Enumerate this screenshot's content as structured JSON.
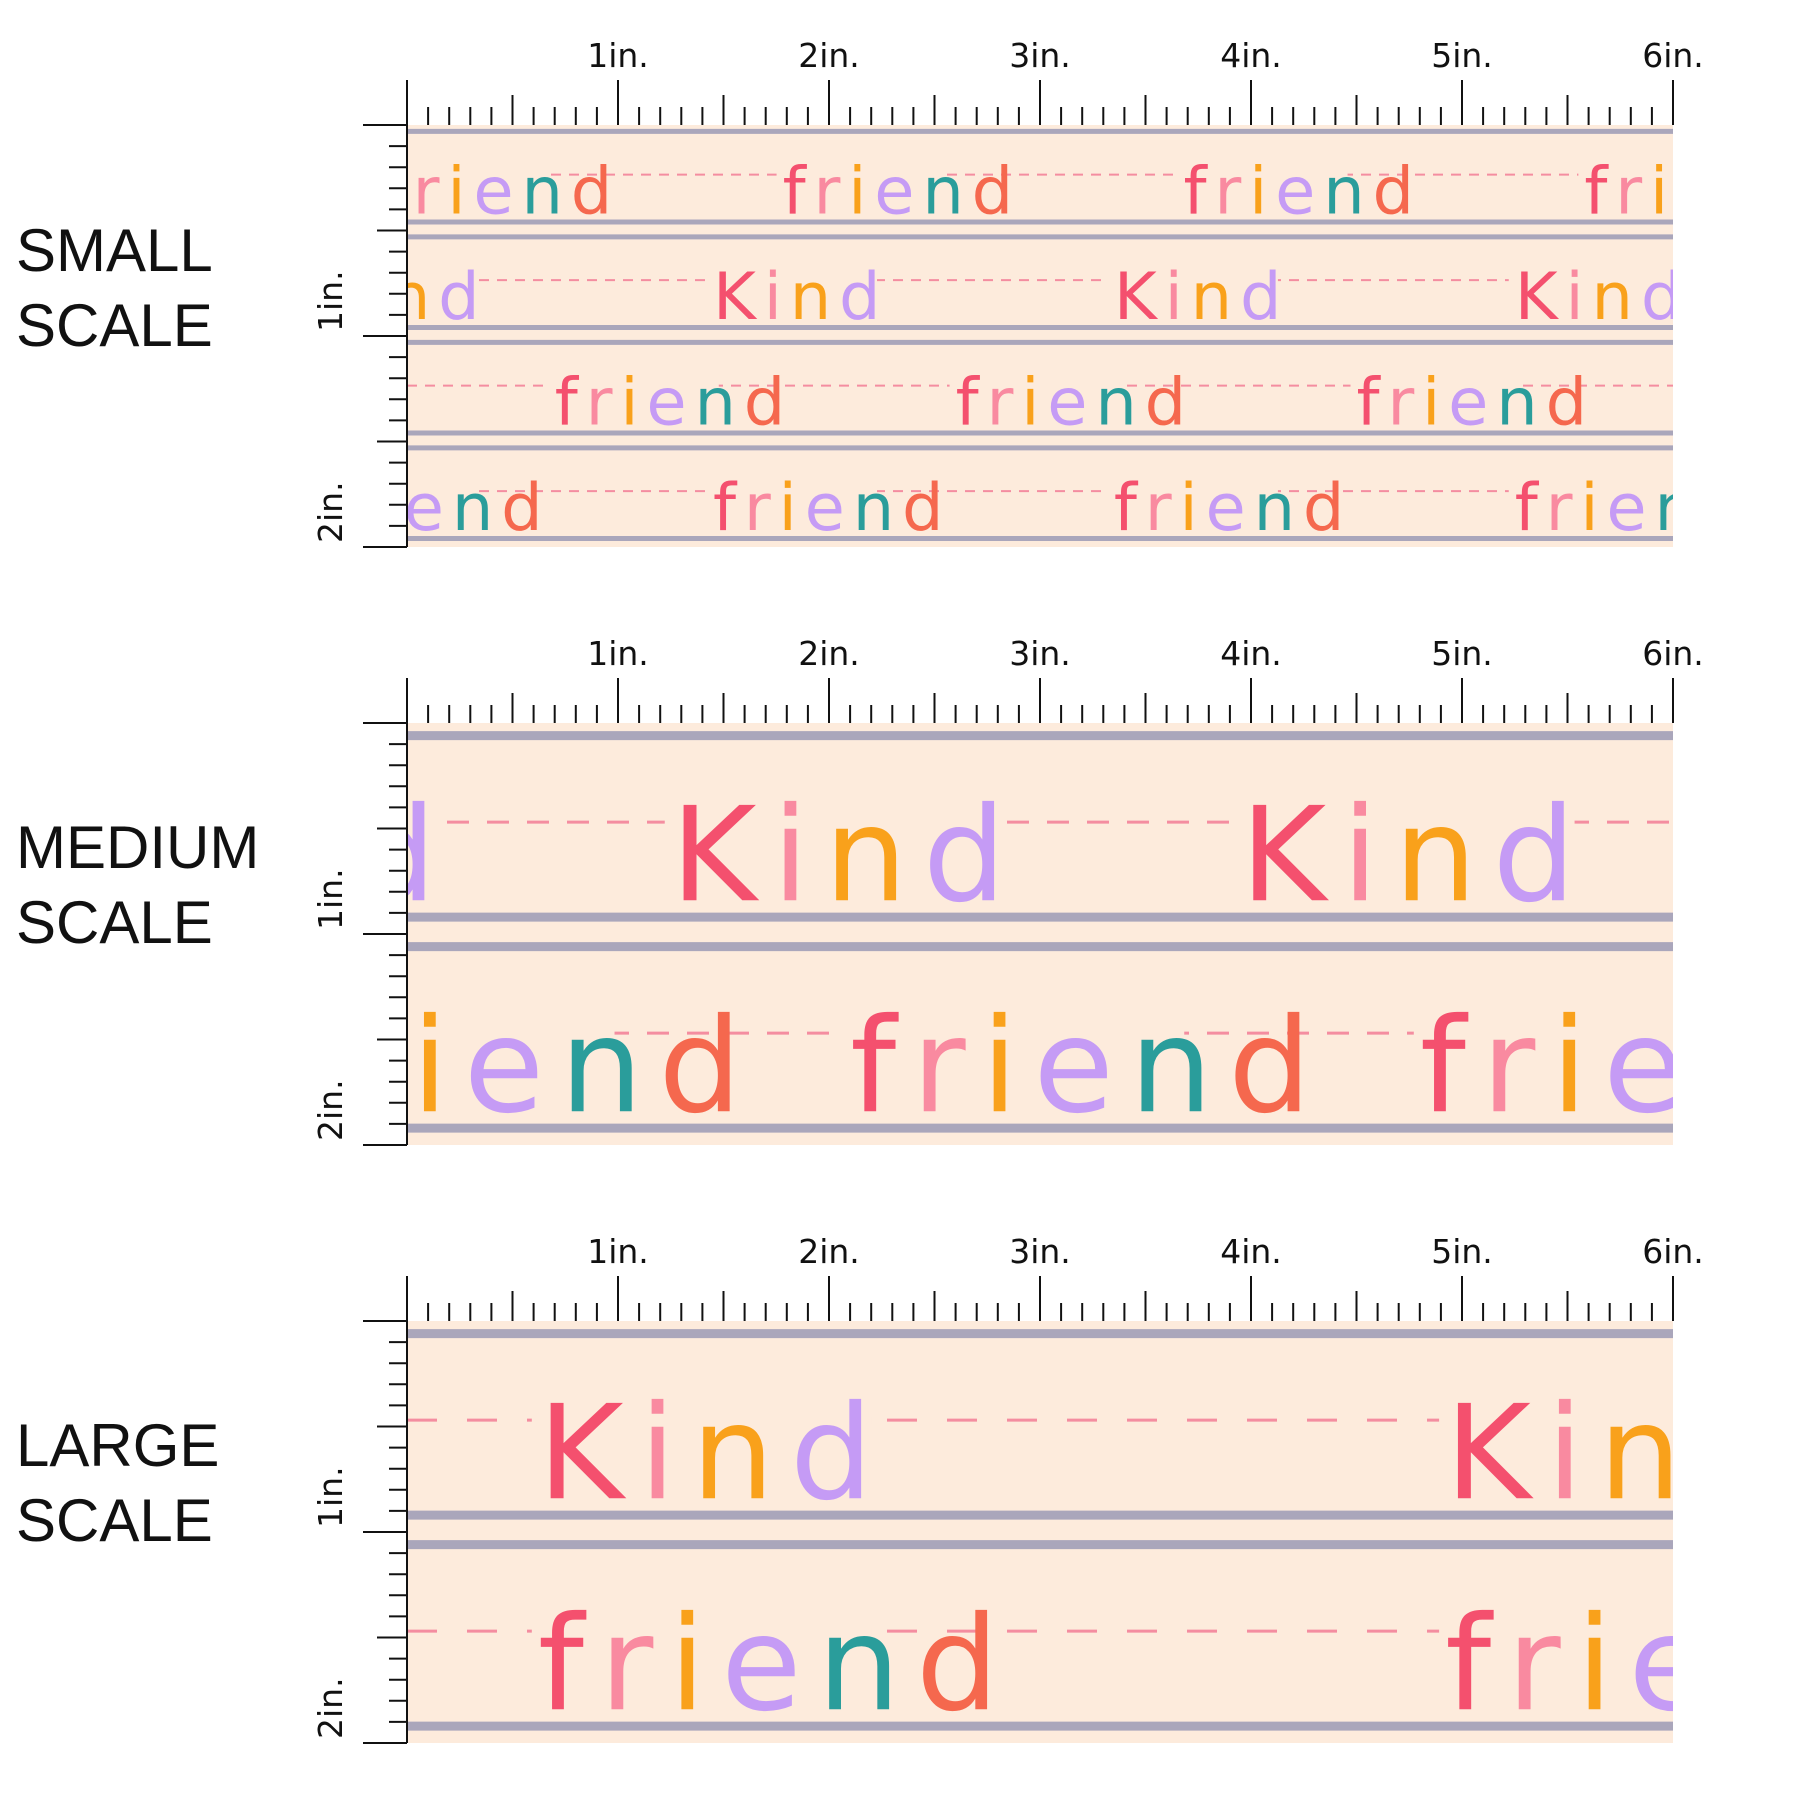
{
  "panels": [
    {
      "label": [
        "SMALL",
        "SCALE"
      ],
      "ruler": {
        "x": [
          "1in.",
          "2in.",
          "3in.",
          "4in.",
          "5in.",
          "6in."
        ],
        "y": [
          "1in.",
          "2in."
        ]
      },
      "rows": [
        "friend",
        "Kind",
        "friend",
        "friend"
      ]
    },
    {
      "label": [
        "MEDIUM",
        "SCALE"
      ],
      "ruler": {
        "x": [
          "1in.",
          "2in.",
          "3in.",
          "4in.",
          "5in.",
          "6in."
        ],
        "y": [
          "1in.",
          "2in."
        ]
      },
      "rows": [
        "Kind",
        "friend"
      ]
    },
    {
      "label": [
        "LARGE",
        "SCALE"
      ],
      "ruler": {
        "x": [
          "1in.",
          "2in.",
          "3in.",
          "4in.",
          "5in.",
          "6in."
        ],
        "y": [
          "1in.",
          "2in."
        ]
      },
      "rows": [
        "Kind",
        "friend"
      ]
    }
  ]
}
